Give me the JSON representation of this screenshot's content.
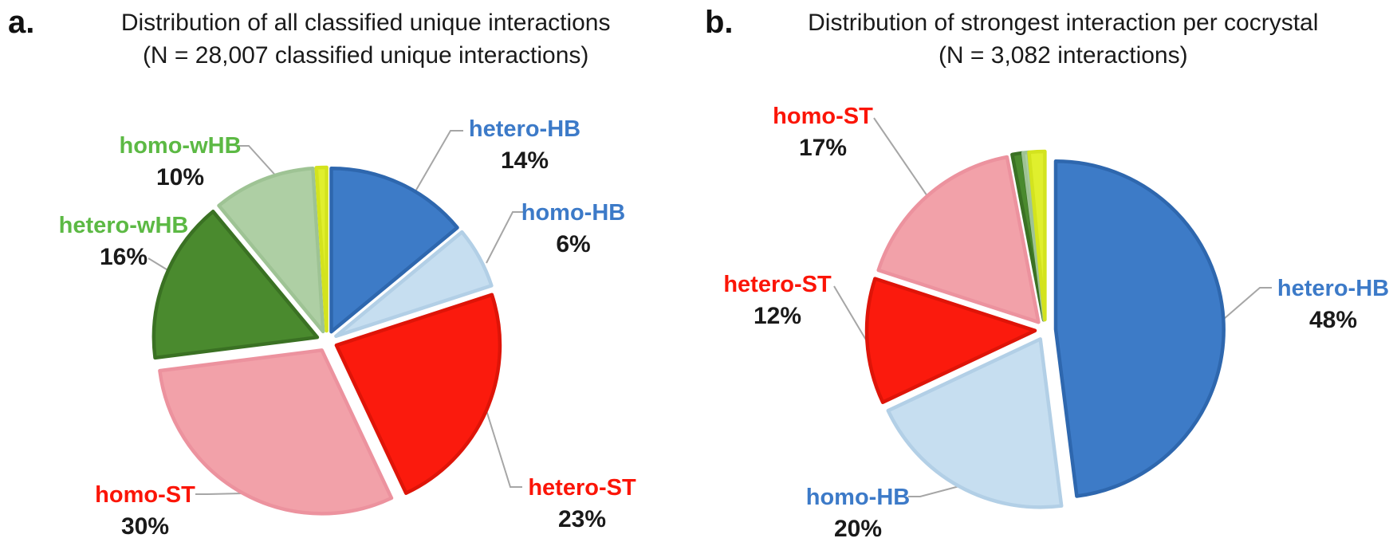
{
  "panels": [
    {
      "id": "a",
      "letter": "a.",
      "title": "Distribution of all classified unique interactions",
      "subtitle": "(N = 28,007 classified unique interactions)"
    },
    {
      "id": "b",
      "letter": "b.",
      "title": "Distribution of strongest interaction per cocrystal",
      "subtitle": "(N = 3,082 interactions)"
    }
  ],
  "colors": {
    "label_blue": "#3C7AC8",
    "label_red": "#FB1507",
    "label_green": "#5CB944",
    "leader_line": "#A6A6A6",
    "percent_text": "#1a1a1a"
  },
  "chart_data": [
    {
      "type": "pie",
      "panel": "a",
      "title": "Distribution of all classified unique interactions",
      "n_label": "N = 28,007 classified unique interactions",
      "start_angle_deg": 0,
      "direction": "clockwise",
      "exploded": true,
      "slices": [
        {
          "label": "hetero-HB",
          "value_pct": 14,
          "pct_text": "14%",
          "fill": "#3D7BC7",
          "stroke": "#2E67AE",
          "label_color": "#3C7AC8"
        },
        {
          "label": "homo-HB",
          "value_pct": 6,
          "pct_text": "6%",
          "fill": "#C6DEF0",
          "stroke": "#B2CFE6",
          "label_color": "#3C7AC8"
        },
        {
          "label": "hetero-ST",
          "value_pct": 23,
          "pct_text": "23%",
          "fill": "#FB1A0D",
          "stroke": "#DE1408",
          "label_color": "#FB1507"
        },
        {
          "label": "homo-ST",
          "value_pct": 30,
          "pct_text": "30%",
          "fill": "#F2A1A9",
          "stroke": "#EC929E",
          "label_color": "#FB1507"
        },
        {
          "label": "hetero-wHB",
          "value_pct": 16,
          "pct_text": "16%",
          "fill": "#4A8A2E",
          "stroke": "#3A7123",
          "label_color": "#5CB944"
        },
        {
          "label": "homo-wHB",
          "value_pct": 10,
          "pct_text": "10%",
          "fill": "#AECFA4",
          "stroke": "#9EC394",
          "label_color": "#5CB944"
        },
        {
          "label": "",
          "value_pct": 1,
          "pct_text": "",
          "fill": "#E0EF2D",
          "stroke": "#D3E31E",
          "label_color": ""
        }
      ]
    },
    {
      "type": "pie",
      "panel": "b",
      "title": "Distribution of strongest interaction per cocrystal",
      "n_label": "N = 3,082 interactions",
      "start_angle_deg": 0,
      "direction": "clockwise",
      "exploded": true,
      "slices": [
        {
          "label": "hetero-HB",
          "value_pct": 48,
          "pct_text": "48%",
          "fill": "#3D7BC7",
          "stroke": "#2E67AE",
          "label_color": "#3C7AC8"
        },
        {
          "label": "homo-HB",
          "value_pct": 20,
          "pct_text": "20%",
          "fill": "#C6DEF0",
          "stroke": "#B2CFE6",
          "label_color": "#3C7AC8"
        },
        {
          "label": "hetero-ST",
          "value_pct": 12,
          "pct_text": "12%",
          "fill": "#FB1A0D",
          "stroke": "#DE1408",
          "label_color": "#FB1507"
        },
        {
          "label": "homo-ST",
          "value_pct": 17,
          "pct_text": "17%",
          "fill": "#F2A1A9",
          "stroke": "#EC929E",
          "label_color": "#FB1507"
        },
        {
          "label": "",
          "value_pct": 1,
          "pct_text": "",
          "fill": "#4A8A2E",
          "stroke": "#3A7123",
          "label_color": ""
        },
        {
          "label": "",
          "value_pct": 0.5,
          "pct_text": "",
          "fill": "#AECFA4",
          "stroke": "#9EC394",
          "label_color": ""
        },
        {
          "label": "",
          "value_pct": 1.5,
          "pct_text": "",
          "fill": "#E0EF2D",
          "stroke": "#D3E31E",
          "label_color": ""
        }
      ]
    }
  ]
}
